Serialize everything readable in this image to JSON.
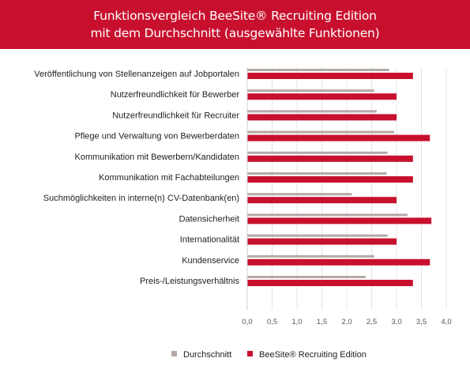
{
  "header": {
    "title_line1": "Funktionsvergleich BeeSite® Recruiting Edition",
    "title_line2": "mit dem Durchschnitt (ausgewählte Funktionen)"
  },
  "colors": {
    "header_bg": "#c8102e",
    "average": "#b3aaa6",
    "beesite": "#c8102e"
  },
  "chart_data": {
    "type": "bar",
    "orientation": "horizontal",
    "categories": [
      "Veröffentlichung von Stellenanzeigen auf Jobportalen",
      "Nutzerfreundlichkeit für Bewerber",
      "Nutzerfreundlichkeit für Recruiter",
      "Pflege und Verwaltung von Bewerberdaten",
      "Kommunikation mit Bewerbern/Kandidaten",
      "Kommunikation mit Fachabteilungen",
      "Suchmöglichkeiten in interne(n) CV-Datenbank(en)",
      "Datensicherheit",
      "Internationalität",
      "Kundenservice",
      "Preis-/Leistungsverhältnis"
    ],
    "series": [
      {
        "name": "Durchschnitt",
        "color": "#b3aaa6",
        "values": [
          2.85,
          2.55,
          2.6,
          2.95,
          2.82,
          2.8,
          2.1,
          3.22,
          2.82,
          2.55,
          2.38
        ]
      },
      {
        "name": "BeeSite® Recruiting Edition",
        "color": "#c8102e",
        "values": [
          3.33,
          3.0,
          3.0,
          3.67,
          3.33,
          3.33,
          3.0,
          3.7,
          3.0,
          3.67,
          3.33
        ]
      }
    ],
    "xlim": [
      0,
      4
    ],
    "xticks": [
      "0,0",
      "0,5",
      "1,0",
      "1,5",
      "2,0",
      "2,5",
      "3,0",
      "3,5",
      "4,0"
    ],
    "grid": "vertical",
    "legend": "bottom-center"
  }
}
